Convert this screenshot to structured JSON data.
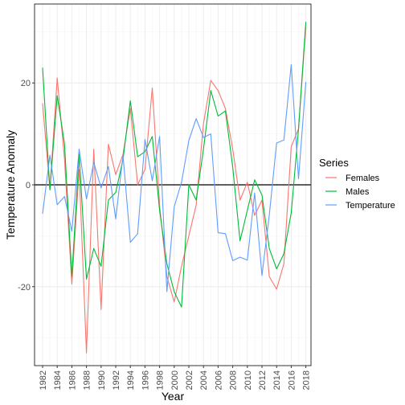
{
  "chart_data": {
    "type": "line",
    "xlabel": "Year",
    "ylabel": "Temperature Anomaly",
    "xlim": [
      1980.9,
      2018.7
    ],
    "ylim": [
      -35.5,
      35.5
    ],
    "x_ticks": [
      1982,
      1984,
      1986,
      1988,
      1990,
      1992,
      1994,
      1996,
      1998,
      2000,
      2002,
      2004,
      2006,
      2008,
      2010,
      2012,
      2014,
      2016,
      2018
    ],
    "x_tick_labels": [
      "1982",
      "1984",
      "1986",
      "1988",
      "1990",
      "1992",
      "1994",
      "1996",
      "1998",
      "2000",
      "2002",
      "2004",
      "2006",
      "2008",
      "2010",
      "2012",
      "2014",
      "2016",
      "2018"
    ],
    "y_ticks": [
      -20,
      0,
      20
    ],
    "y_tick_labels": [
      "-20",
      "0",
      "20"
    ],
    "grid": true,
    "reference_line_y": 0,
    "legend_title": "Series",
    "legend_position": "right",
    "x": [
      1982,
      1983,
      1984,
      1985,
      1986,
      1987,
      1988,
      1989,
      1990,
      1991,
      1992,
      1993,
      1994,
      1995,
      1996,
      1997,
      1998,
      1999,
      2000,
      2001,
      2002,
      2003,
      2004,
      2005,
      2006,
      2007,
      2008,
      2009,
      2010,
      2011,
      2012,
      2013,
      2014,
      2015,
      2016,
      2017,
      2018
    ],
    "series": [
      {
        "name": "Females",
        "color": "#f8766d",
        "values": [
          16,
          -1,
          21,
          5,
          -19.5,
          3,
          -33,
          7,
          -24.5,
          8,
          2,
          6,
          15,
          0,
          3,
          19,
          -4,
          -18,
          -23,
          -16,
          -10,
          -4,
          12,
          20.5,
          18.5,
          15,
          7,
          -3,
          0.5,
          -6,
          -3,
          -18,
          -20.5,
          -15.5,
          7.5,
          11,
          31
        ]
      },
      {
        "name": "Males",
        "color": "#00ba38",
        "values": [
          23,
          -1,
          17.5,
          8,
          -18,
          6,
          -18.5,
          -12.5,
          -16,
          -3,
          -1.5,
          5,
          16.5,
          5.5,
          6.5,
          9.5,
          -5,
          -15.5,
          -21,
          -24,
          0,
          -3,
          7,
          18.5,
          13.5,
          14.5,
          3.5,
          -11,
          -5,
          1,
          -2,
          -12.5,
          -16.5,
          -13.5,
          -5.5,
          11,
          32
        ]
      },
      {
        "name": "Temperature",
        "color": "#619cff",
        "values": [
          -5.7,
          5.8,
          -3.9,
          -2.3,
          -9.1,
          7.0,
          -2.8,
          4.4,
          -0.6,
          3.6,
          -6.7,
          5.8,
          -11.3,
          -9.6,
          8.9,
          0.8,
          9.5,
          -21.0,
          -4.3,
          0.5,
          8.7,
          13.0,
          9.3,
          10.0,
          -9.4,
          -9.6,
          -14.9,
          -14.2,
          -14.8,
          -1.6,
          -17.8,
          -6.0,
          8.2,
          8.8,
          23.6,
          1.2,
          20.2
        ]
      }
    ]
  }
}
